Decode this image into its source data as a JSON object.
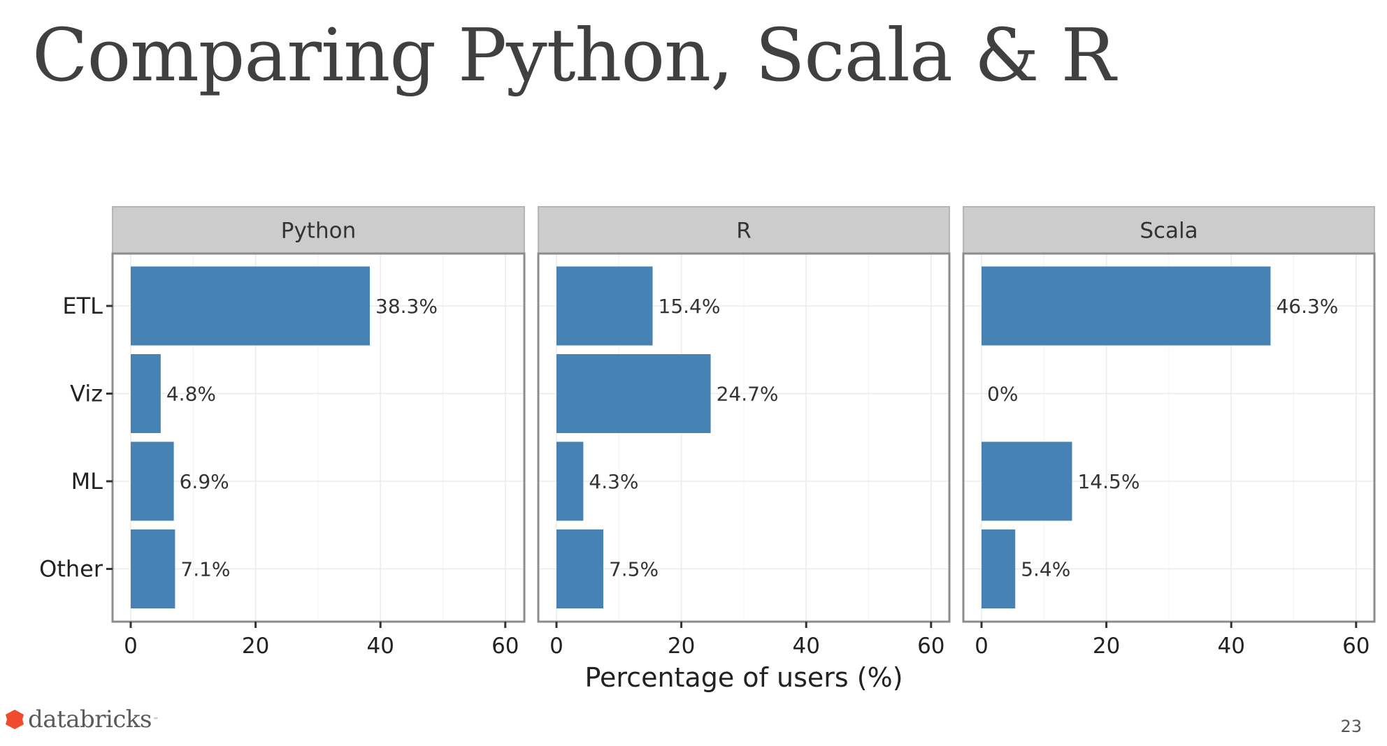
{
  "slide": {
    "title": "Comparing Python, Scala & R",
    "page_number": "23",
    "logo_text": "databricks",
    "logo_tm": "™",
    "logo_color": "#ee4c2c"
  },
  "chart_data": {
    "type": "bar",
    "orientation": "horizontal",
    "faceted": true,
    "title": "",
    "xlabel": "Percentage of users (%)",
    "ylabel": "",
    "xlim": [
      0,
      60
    ],
    "x_ticks": [
      0,
      20,
      40,
      60
    ],
    "grid": true,
    "bar_color": "#4682b4",
    "categories": [
      "ETL",
      "Viz",
      "ML",
      "Other"
    ],
    "series": [
      {
        "name": "Python",
        "values": [
          38.3,
          4.8,
          6.9,
          7.1
        ],
        "labels": [
          "38.3%",
          "4.8%",
          "6.9%",
          "7.1%"
        ]
      },
      {
        "name": "R",
        "values": [
          15.4,
          24.7,
          4.3,
          7.5
        ],
        "labels": [
          "15.4%",
          "24.7%",
          "4.3%",
          "7.5%"
        ]
      },
      {
        "name": "Scala",
        "values": [
          46.3,
          0,
          14.5,
          5.4
        ],
        "labels": [
          "46.3%",
          "0%",
          "14.5%",
          "5.4%"
        ]
      }
    ]
  }
}
